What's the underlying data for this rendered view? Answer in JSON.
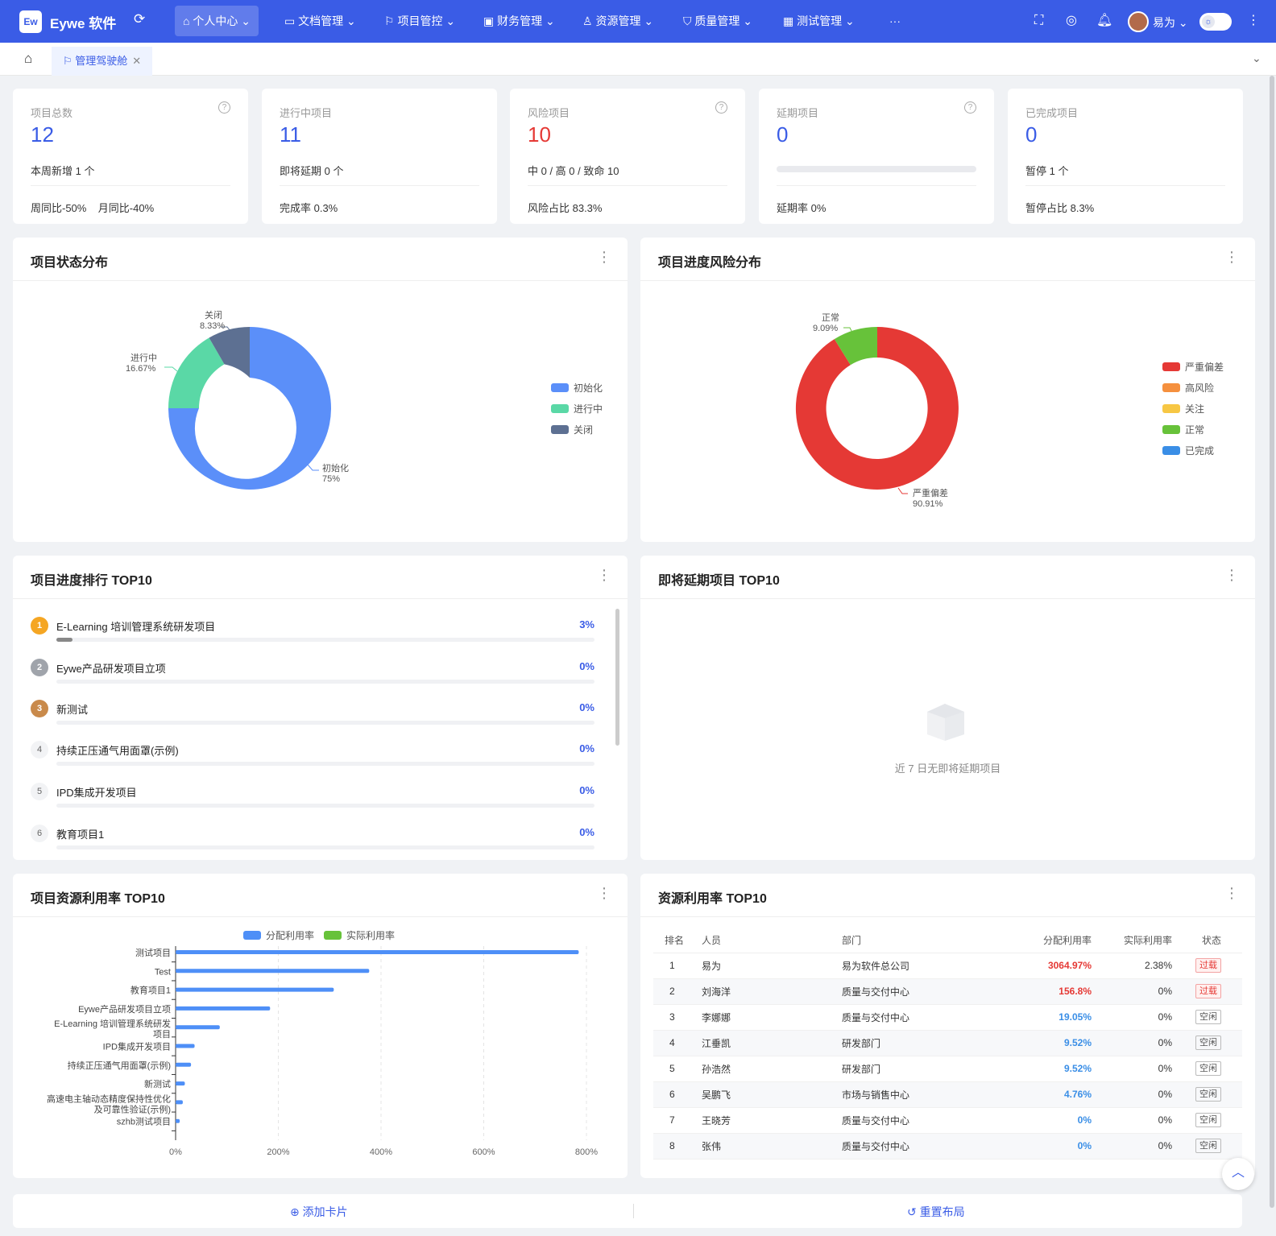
{
  "header": {
    "logo": "Ew",
    "app_name": "Eywe 软件",
    "refresh_icon": "refresh-icon",
    "nav": [
      {
        "label": "个人中心",
        "icon": "home-icon"
      },
      {
        "label": "文档管理",
        "icon": "folder-icon"
      },
      {
        "label": "项目管控",
        "icon": "flag-icon"
      },
      {
        "label": "财务管理",
        "icon": "wallet-icon"
      },
      {
        "label": "资源管理",
        "icon": "people-icon"
      },
      {
        "label": "质量管理",
        "icon": "shield-icon"
      },
      {
        "label": "测试管理",
        "icon": "calendar-icon"
      }
    ],
    "more": "···",
    "user": "易为"
  },
  "tabs": {
    "active": "管理驾驶舱"
  },
  "stats": [
    {
      "title": "项目总数",
      "value": "12",
      "sub": "本周新增 1 个",
      "foot": "周同比-50%    月同比-40%"
    },
    {
      "title": "进行中项目",
      "value": "11",
      "sub": "即将延期 0 个",
      "foot": "完成率 0.3%"
    },
    {
      "title": "风险项目",
      "value": "10",
      "sub": "中 0 / 高 0 / 致命 10",
      "foot": "风险占比 83.3%",
      "color": "#e53935"
    },
    {
      "title": "延期项目",
      "value": "0",
      "progress": 0,
      "foot": "延期率 0%"
    },
    {
      "title": "已完成项目",
      "value": "0",
      "sub": "暂停 1 个",
      "foot": "暂停占比 8.3%"
    }
  ],
  "status_chart": {
    "title": "项目状态分布",
    "legend": [
      "初始化",
      "进行中",
      "关闭"
    ],
    "colors": [
      "#5b8ff9",
      "#5ad8a6",
      "#5d7092"
    ],
    "labels": [
      {
        "name": "关闭",
        "pct": "8.33%"
      },
      {
        "name": "进行中",
        "pct": "16.67%"
      },
      {
        "name": "初始化",
        "pct": "75%"
      }
    ]
  },
  "risk_chart": {
    "title": "项目进度风险分布",
    "legend": [
      "严重偏差",
      "高风险",
      "关注",
      "正常",
      "已完成"
    ],
    "colors": [
      "#e53935",
      "#f5903e",
      "#f7c744",
      "#67c23a",
      "#3a8ee6"
    ],
    "labels": [
      {
        "name": "正常",
        "pct": "9.09%"
      },
      {
        "name": "严重偏差",
        "pct": "90.91%"
      }
    ]
  },
  "progress_rank": {
    "title": "项目进度排行 TOP10",
    "items": [
      {
        "rank": "1",
        "name": "E-Learning 培训管理系统研发项目",
        "pct": "3%",
        "value": 3
      },
      {
        "rank": "2",
        "name": "Eywe产品研发项目立项",
        "pct": "0%",
        "value": 0
      },
      {
        "rank": "3",
        "name": "新测试",
        "pct": "0%",
        "value": 0
      },
      {
        "rank": "4",
        "name": "持续正压通气用面罩(示例)",
        "pct": "0%",
        "value": 0
      },
      {
        "rank": "5",
        "name": "IPD集成开发项目",
        "pct": "0%",
        "value": 0
      },
      {
        "rank": "6",
        "name": "教育项目1",
        "pct": "0%",
        "value": 0
      }
    ]
  },
  "delay_rank": {
    "title": "即将延期项目 TOP10",
    "empty": "近 7 日无即将延期项目"
  },
  "resource_chart": {
    "title": "项目资源利用率 TOP10",
    "legend": [
      "分配利用率",
      "实际利用率"
    ]
  },
  "chart_data": {
    "type": "bar",
    "orientation": "horizontal",
    "categories": [
      "测试项目",
      "Test",
      "教育项目1",
      "Eywe产品研发项目立项",
      "E-Learning 培训管理系统研发项目",
      "IPD集成开发项目",
      "持续正压通气用面罩(示例)",
      "新测试",
      "高速电主轴动态精度保持性优化及可靠性验证(示例)",
      "szhb测试项目"
    ],
    "series": [
      {
        "name": "分配利用率",
        "values": [
          785,
          377,
          308,
          184,
          86,
          37,
          30,
          18,
          14,
          8
        ],
        "color": "#4e8ff7"
      },
      {
        "name": "实际利用率",
        "values": [
          0,
          0,
          0,
          0,
          0,
          0,
          0,
          0,
          0,
          0
        ],
        "color": "#67c23a"
      }
    ],
    "xlim": [
      0,
      800
    ],
    "xticks": [
      "0%",
      "200%",
      "400%",
      "600%",
      "800%"
    ]
  },
  "usage_table": {
    "title": "资源利用率 TOP10",
    "columns": [
      "排名",
      "人员",
      "部门",
      "分配利用率",
      "实际利用率",
      "状态"
    ],
    "rows": [
      {
        "rank": "1",
        "name": "易为",
        "dept": "易为软件总公司",
        "alloc": "3064.97%",
        "actual": "2.38%",
        "status": "过载",
        "color": "#e53935"
      },
      {
        "rank": "2",
        "name": "刘海洋",
        "dept": "质量与交付中心",
        "alloc": "156.8%",
        "actual": "0%",
        "status": "过载",
        "color": "#e53935"
      },
      {
        "rank": "3",
        "name": "李娜娜",
        "dept": "质量与交付中心",
        "alloc": "19.05%",
        "actual": "0%",
        "status": "空闲",
        "color": "#3a8ee6"
      },
      {
        "rank": "4",
        "name": "江垂凯",
        "dept": "研发部门",
        "alloc": "9.52%",
        "actual": "0%",
        "status": "空闲",
        "color": "#3a8ee6"
      },
      {
        "rank": "5",
        "name": "孙浩然",
        "dept": "研发部门",
        "alloc": "9.52%",
        "actual": "0%",
        "status": "空闲",
        "color": "#3a8ee6"
      },
      {
        "rank": "6",
        "name": "吴鹏飞",
        "dept": "市场与销售中心",
        "alloc": "4.76%",
        "actual": "0%",
        "status": "空闲",
        "color": "#3a8ee6"
      },
      {
        "rank": "7",
        "name": "王晓芳",
        "dept": "质量与交付中心",
        "alloc": "0%",
        "actual": "0%",
        "status": "空闲",
        "color": "#3a8ee6"
      },
      {
        "rank": "8",
        "name": "张伟",
        "dept": "质量与交付中心",
        "alloc": "0%",
        "actual": "0%",
        "status": "空闲",
        "color": "#3a8ee6"
      }
    ]
  },
  "footer": {
    "add": "添加卡片",
    "reset": "重置布局"
  }
}
